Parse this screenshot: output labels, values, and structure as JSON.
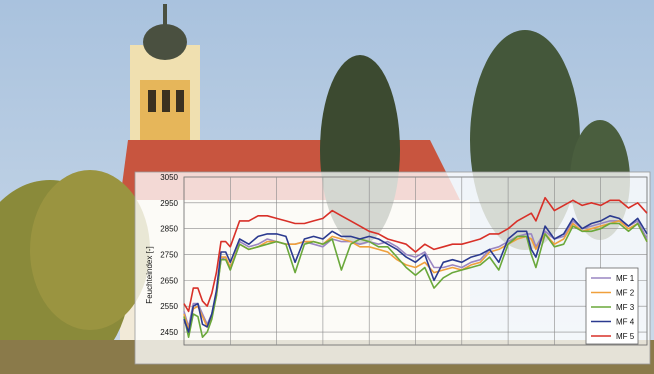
{
  "chart_data": {
    "type": "line",
    "title": "",
    "xlabel": "",
    "ylabel": "Feuchteindex [-]",
    "ylim": [
      2400,
      3050
    ],
    "yticks": [
      2450,
      2550,
      2650,
      2750,
      2850,
      2950,
      3050
    ],
    "ytick_labels": [
      "2450",
      "2550",
      "2650",
      "2750",
      "2850",
      "2950",
      "3050"
    ],
    "xlim": [
      0,
      100
    ],
    "grid": true,
    "legend_position": "bottom-right",
    "x": [
      0,
      1,
      2,
      3,
      4,
      5,
      6,
      7,
      8,
      9,
      10,
      12,
      14,
      16,
      18,
      20,
      22,
      24,
      26,
      28,
      30,
      32,
      34,
      36,
      38,
      40,
      42,
      44,
      46,
      48,
      50,
      52,
      54,
      56,
      58,
      60,
      62,
      64,
      66,
      68,
      70,
      72,
      74,
      75,
      76,
      78,
      80,
      82,
      84,
      86,
      88,
      90,
      92,
      94,
      96,
      98,
      100
    ],
    "series": [
      {
        "name": "MF 1",
        "color": "#9a86c2",
        "values": [
          2530,
          2470,
          2560,
          2560,
          2520,
          2480,
          2520,
          2600,
          2730,
          2740,
          2690,
          2800,
          2780,
          2790,
          2810,
          2800,
          2790,
          2790,
          2800,
          2790,
          2780,
          2810,
          2800,
          2800,
          2790,
          2800,
          2790,
          2800,
          2780,
          2750,
          2740,
          2760,
          2700,
          2700,
          2710,
          2700,
          2720,
          2730,
          2770,
          2780,
          2800,
          2820,
          2830,
          2830,
          2780,
          2840,
          2810,
          2820,
          2880,
          2850,
          2860,
          2870,
          2880,
          2880,
          2860,
          2880,
          2810
        ]
      },
      {
        "name": "MF 2",
        "color": "#f0a03c",
        "values": [
          2520,
          2460,
          2540,
          2550,
          2510,
          2470,
          2510,
          2590,
          2740,
          2740,
          2700,
          2790,
          2770,
          2780,
          2800,
          2800,
          2790,
          2790,
          2800,
          2800,
          2790,
          2820,
          2810,
          2800,
          2780,
          2780,
          2770,
          2760,
          2730,
          2710,
          2700,
          2720,
          2680,
          2690,
          2700,
          2690,
          2710,
          2720,
          2760,
          2770,
          2790,
          2810,
          2820,
          2810,
          2770,
          2830,
          2790,
          2810,
          2870,
          2840,
          2850,
          2860,
          2870,
          2880,
          2850,
          2870,
          2800
        ]
      },
      {
        "name": "MF 3",
        "color": "#6aa83a",
        "values": [
          2510,
          2430,
          2520,
          2510,
          2430,
          2450,
          2500,
          2590,
          2730,
          2730,
          2690,
          2790,
          2770,
          2780,
          2790,
          2800,
          2790,
          2680,
          2790,
          2800,
          2790,
          2810,
          2690,
          2790,
          2810,
          2800,
          2780,
          2780,
          2740,
          2700,
          2670,
          2700,
          2620,
          2660,
          2680,
          2690,
          2700,
          2710,
          2740,
          2690,
          2790,
          2820,
          2820,
          2750,
          2700,
          2830,
          2780,
          2790,
          2860,
          2840,
          2840,
          2850,
          2870,
          2870,
          2840,
          2870,
          2800
        ]
      },
      {
        "name": "MF 4",
        "color": "#2b3a8f",
        "values": [
          2500,
          2450,
          2550,
          2560,
          2480,
          2470,
          2520,
          2610,
          2760,
          2760,
          2720,
          2810,
          2790,
          2820,
          2830,
          2830,
          2820,
          2720,
          2810,
          2820,
          2810,
          2840,
          2820,
          2820,
          2810,
          2820,
          2810,
          2790,
          2770,
          2740,
          2720,
          2750,
          2650,
          2720,
          2730,
          2720,
          2740,
          2750,
          2770,
          2720,
          2810,
          2840,
          2840,
          2770,
          2740,
          2860,
          2810,
          2830,
          2890,
          2850,
          2870,
          2880,
          2900,
          2890,
          2860,
          2890,
          2830
        ]
      },
      {
        "name": "MF 5",
        "color": "#d83028",
        "values": [
          2560,
          2530,
          2620,
          2620,
          2570,
          2550,
          2600,
          2680,
          2800,
          2800,
          2780,
          2880,
          2880,
          2900,
          2900,
          2890,
          2880,
          2870,
          2870,
          2880,
          2890,
          2920,
          2900,
          2880,
          2860,
          2840,
          2830,
          2810,
          2800,
          2790,
          2760,
          2790,
          2770,
          2780,
          2790,
          2790,
          2800,
          2810,
          2830,
          2830,
          2850,
          2880,
          2900,
          2910,
          2880,
          2970,
          2920,
          2940,
          2960,
          2940,
          2950,
          2940,
          2960,
          2960,
          2930,
          2950,
          2910
        ]
      }
    ]
  }
}
